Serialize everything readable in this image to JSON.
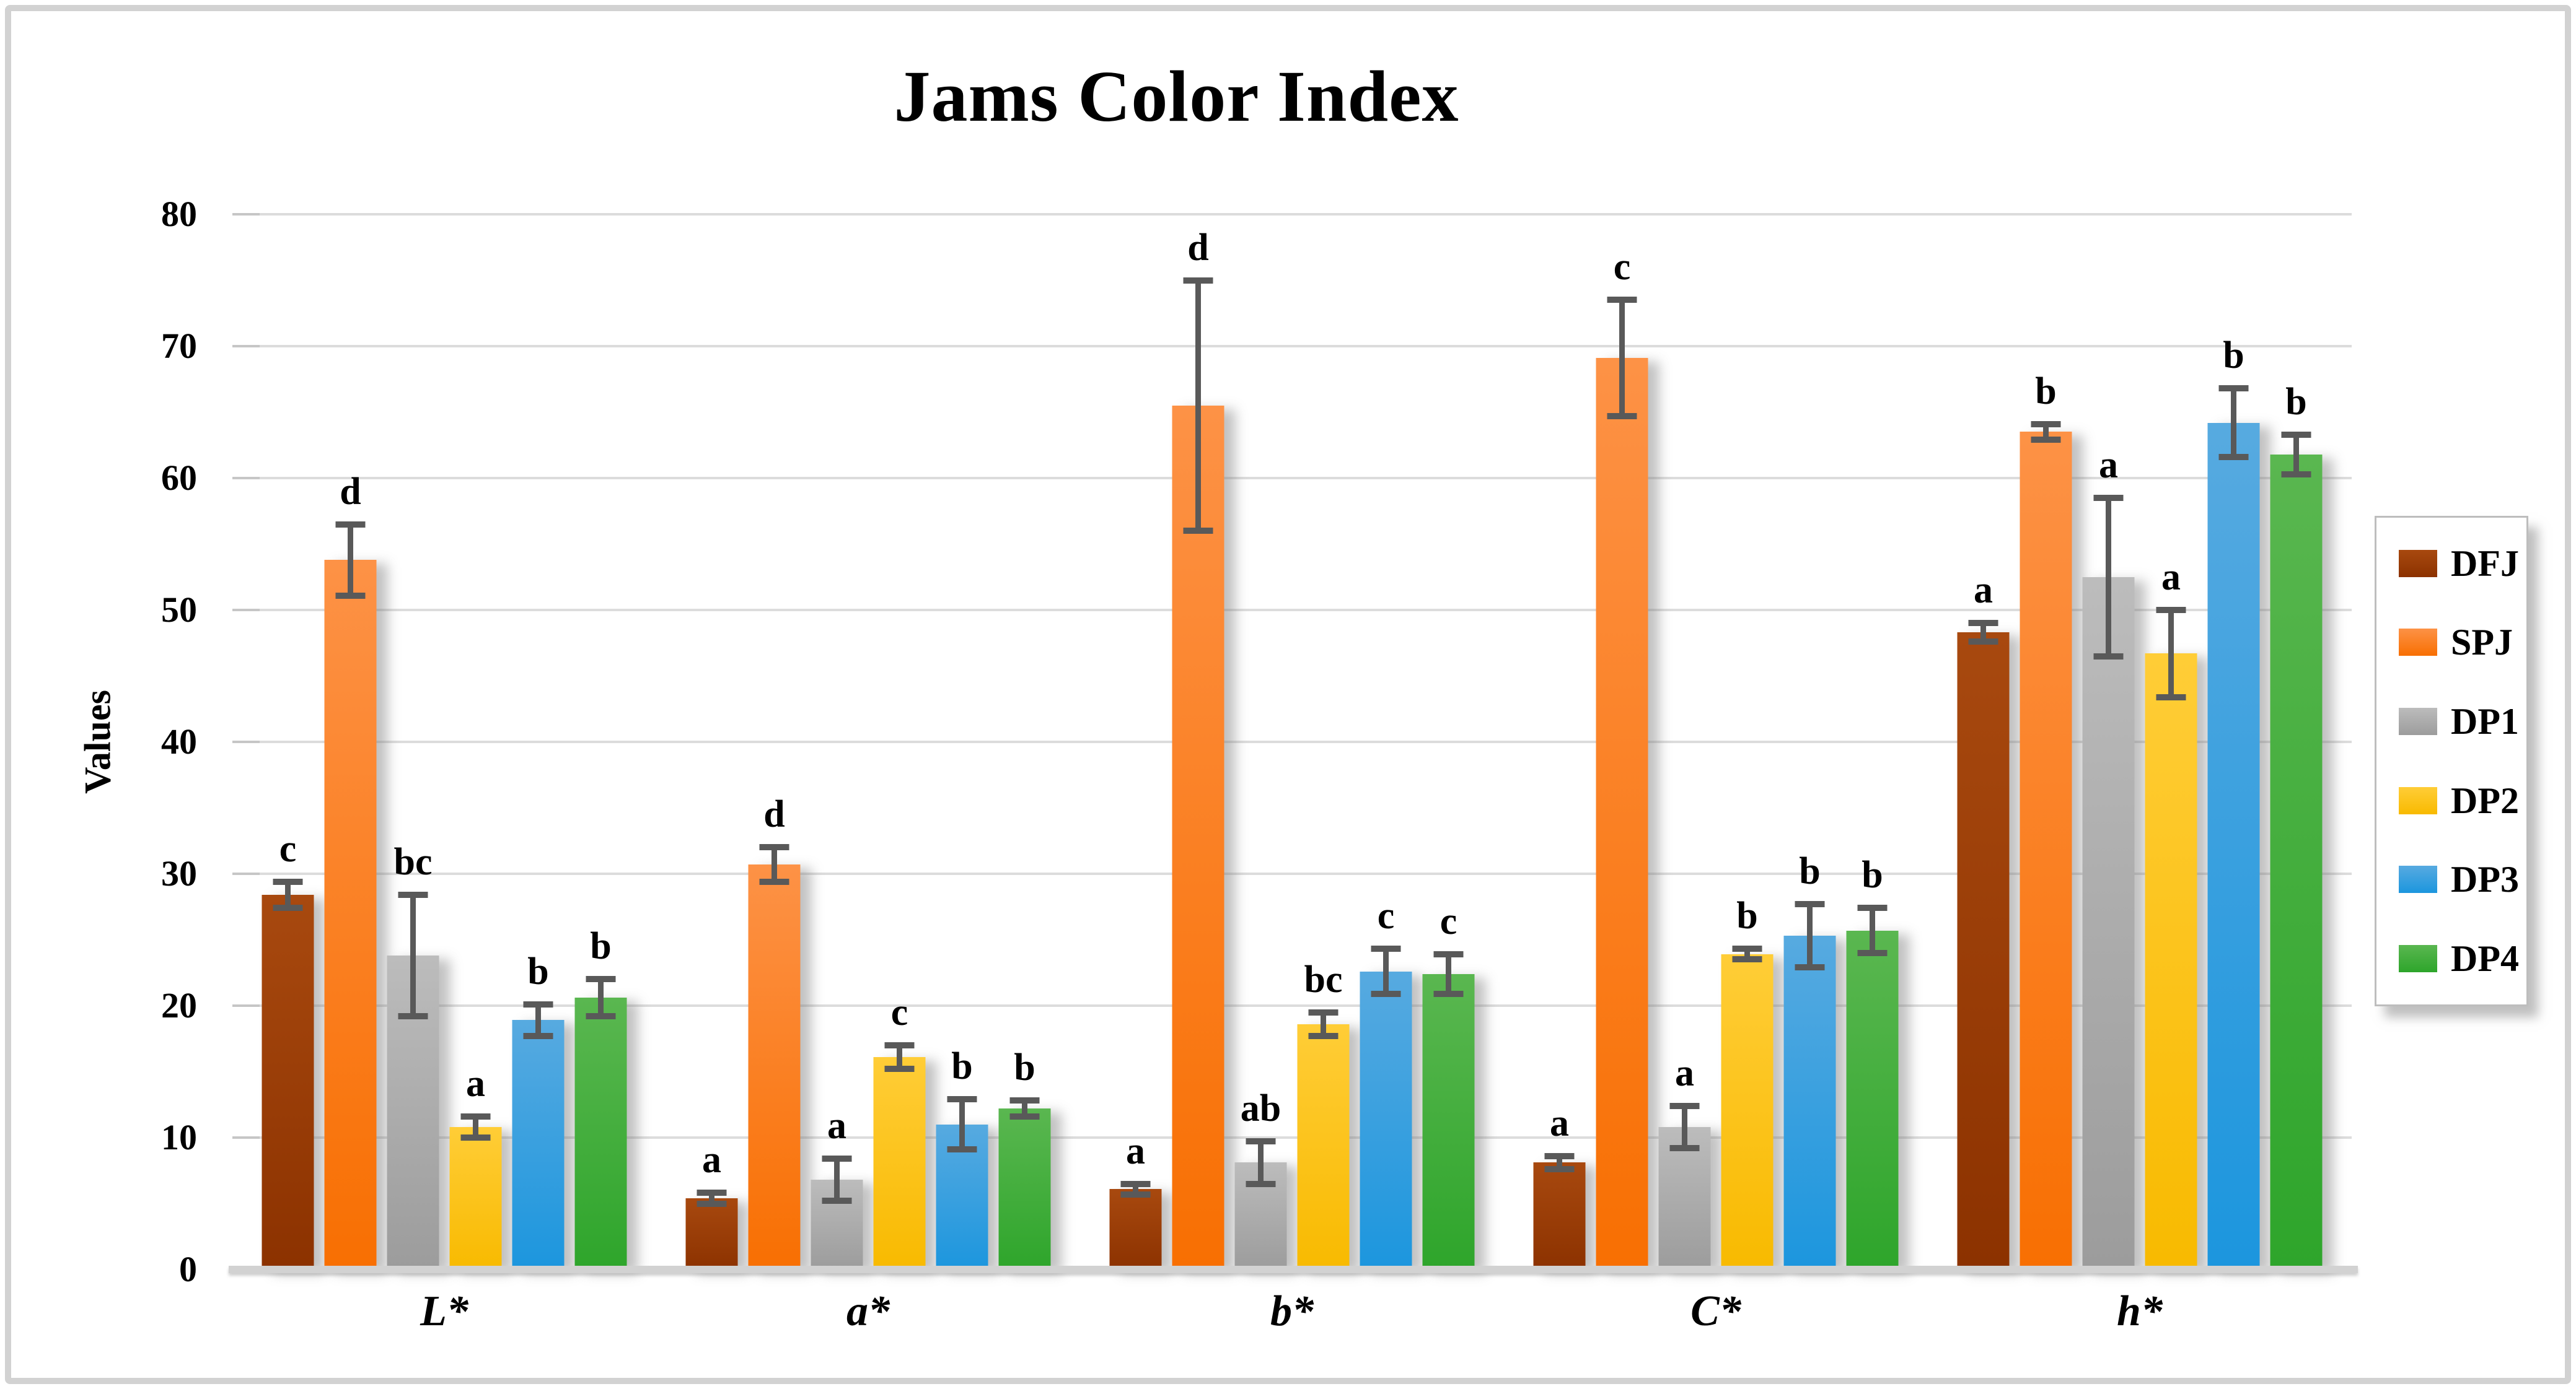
{
  "frame": {
    "background": "#ffffff",
    "border_color": "#d2d2d2"
  },
  "chart_data": {
    "type": "bar",
    "title": "Jams Color Index",
    "ylabel": "Values",
    "xlabel": "",
    "ylim": [
      0,
      80
    ],
    "yticks": [
      0,
      10,
      20,
      30,
      40,
      50,
      60,
      70,
      80
    ],
    "grid": true,
    "grid_color": "#dcdcdc",
    "axis_line_color": "#d2d2d2",
    "error_bar_color": "#595959",
    "legend_position": "right",
    "categories": [
      "L*",
      "a*",
      "b*",
      "C*",
      "h*"
    ],
    "series": [
      {
        "name": "DFJ",
        "color": "#993300",
        "color_top": "#a8490f",
        "color_bottom": "#8c3200",
        "values": [
          28.4,
          5.4,
          6.1,
          8.1,
          48.3
        ],
        "errors": [
          1.0,
          0.4,
          0.4,
          0.5,
          0.7
        ],
        "letters": [
          "c",
          "a",
          "a",
          "a",
          "a"
        ]
      },
      {
        "name": "SPJ",
        "color": "#fa7c17",
        "color_top": "#fd9246",
        "color_bottom": "#f86f02",
        "values": [
          53.8,
          30.7,
          65.5,
          69.1,
          63.5
        ],
        "errors": [
          2.7,
          1.3,
          9.5,
          4.4,
          0.6
        ],
        "letters": [
          "d",
          "d",
          "d",
          "c",
          "b"
        ]
      },
      {
        "name": "DP1",
        "color": "#a6a6a6",
        "color_top": "#bcbcbc",
        "color_bottom": "#9c9c9c",
        "values": [
          23.8,
          6.8,
          8.1,
          10.8,
          52.5
        ],
        "errors": [
          4.6,
          1.6,
          1.6,
          1.6,
          6.0
        ],
        "letters": [
          "bc",
          "a",
          "ab",
          "a",
          "a"
        ]
      },
      {
        "name": "DP2",
        "color": "#ffc000",
        "color_top": "#ffcd37",
        "color_bottom": "#f8ba00",
        "values": [
          10.8,
          16.1,
          18.6,
          23.9,
          46.7
        ],
        "errors": [
          0.8,
          0.9,
          0.9,
          0.4,
          3.3
        ],
        "letters": [
          "a",
          "c",
          "bc",
          "b",
          "a"
        ]
      },
      {
        "name": "DP3",
        "color": "#2e9bd6",
        "color_top": "#57aae0",
        "color_bottom": "#1c96de",
        "values": [
          18.9,
          11.0,
          22.6,
          25.3,
          64.2
        ],
        "errors": [
          1.2,
          1.9,
          1.7,
          2.4,
          2.6
        ],
        "letters": [
          "b",
          "b",
          "c",
          "b",
          "b"
        ]
      },
      {
        "name": "DP4",
        "color": "#3fa33c",
        "color_top": "#5ab750",
        "color_bottom": "#2ea52b",
        "values": [
          20.6,
          12.2,
          22.4,
          25.7,
          61.8
        ],
        "errors": [
          1.4,
          0.6,
          1.5,
          1.7,
          1.5
        ],
        "letters": [
          "b",
          "b",
          "c",
          "b",
          "b"
        ]
      }
    ]
  }
}
